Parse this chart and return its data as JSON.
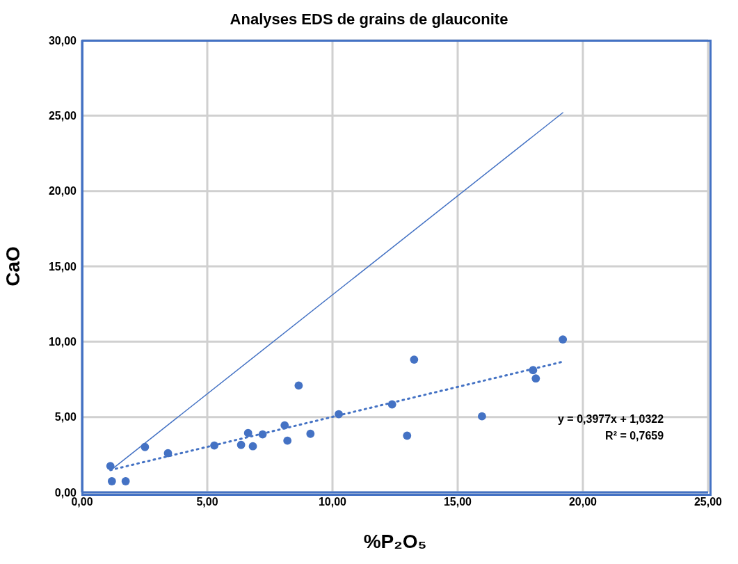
{
  "chart_data": {
    "type": "scatter",
    "title": "Analyses EDS de grains de glauconite",
    "xlabel": "%P₂O₅",
    "ylabel": "CaO",
    "xlim": [
      0,
      25
    ],
    "ylim": [
      0,
      30
    ],
    "xticks": [
      {
        "value": 0,
        "label": "0,00"
      },
      {
        "value": 5,
        "label": "5,00"
      },
      {
        "value": 10,
        "label": "10,00"
      },
      {
        "value": 15,
        "label": "15,00"
      },
      {
        "value": 20,
        "label": "20,00"
      },
      {
        "value": 25,
        "label": "25,00"
      }
    ],
    "yticks": [
      {
        "value": 0,
        "label": "0,00"
      },
      {
        "value": 5,
        "label": "5,00"
      },
      {
        "value": 10,
        "label": "10,00"
      },
      {
        "value": 15,
        "label": "15,00"
      },
      {
        "value": 20,
        "label": "20,00"
      },
      {
        "value": 25,
        "label": "25,00"
      },
      {
        "value": 30,
        "label": "30,00"
      }
    ],
    "grid": true,
    "series": [
      {
        "type": "scatter",
        "color": "#4472c4",
        "marker": "circle",
        "x": [
          1.13,
          1.19,
          1.74,
          2.51,
          3.43,
          5.28,
          6.35,
          6.63,
          6.82,
          7.21,
          8.09,
          8.2,
          8.65,
          9.12,
          10.25,
          12.38,
          12.98,
          13.26,
          15.97,
          18.01,
          18.12,
          19.2
        ],
        "values": [
          1.75,
          0.74,
          0.74,
          3.01,
          2.6,
          3.11,
          3.15,
          3.94,
          3.06,
          3.85,
          4.45,
          3.43,
          7.09,
          3.89,
          5.19,
          5.84,
          3.76,
          8.81,
          5.05,
          8.11,
          7.56,
          10.15
        ]
      },
      {
        "type": "line",
        "color": "#4472c4",
        "line_style": "dotted",
        "x": [
          1.13,
          19.2
        ],
        "values": [
          1.48,
          8.67
        ]
      },
      {
        "type": "line",
        "color": "#4472c4",
        "line_style": "solid",
        "x": [
          1.19,
          19.2
        ],
        "values": [
          1.53,
          25.2
        ]
      }
    ],
    "annotations": [
      "y = 0,3977x + 1,0322",
      "R² = 0,7659"
    ]
  }
}
